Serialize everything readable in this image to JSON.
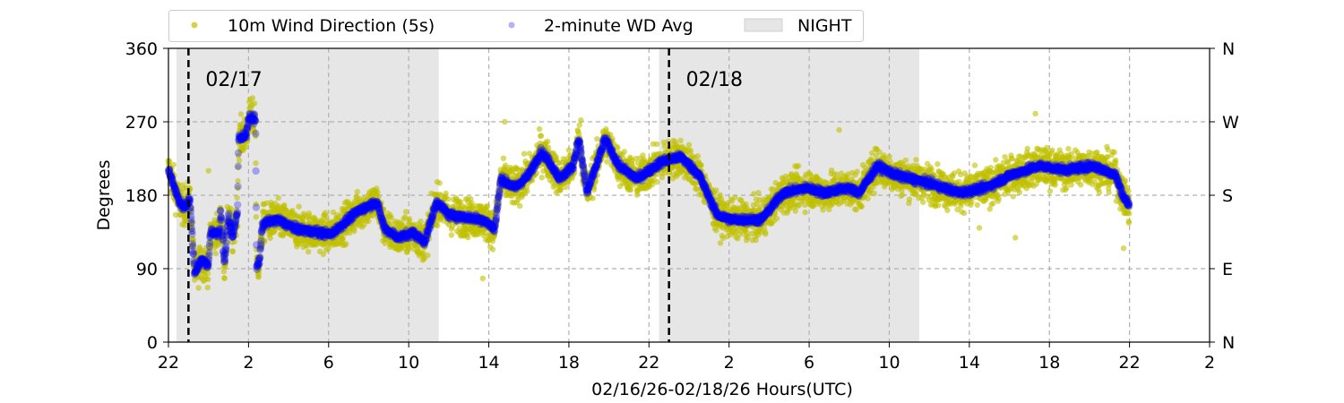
{
  "chart_data": {
    "type": "scatter",
    "title": "",
    "xlabel": "02/16/26-02/18/26  Hours(UTC)",
    "ylabel": "Degrees",
    "x_unit": "hours since 02/16 22:00 UTC",
    "xlim": [
      0,
      52
    ],
    "ylim": [
      0,
      360
    ],
    "x_ticks": [
      0,
      4,
      8,
      12,
      16,
      20,
      24,
      28,
      32,
      36,
      40,
      44,
      48,
      52
    ],
    "x_tick_labels": [
      "22",
      "2",
      "6",
      "10",
      "14",
      "18",
      "22",
      "2",
      "6",
      "10",
      "14",
      "18",
      "22",
      "2"
    ],
    "y_ticks": [
      0,
      90,
      180,
      270,
      360
    ],
    "y_tick_labels": [
      "0",
      "90",
      "180",
      "270",
      "360"
    ],
    "y2_tick_labels": [
      "N",
      "E",
      "S",
      "W",
      "N"
    ],
    "grid": true,
    "legend": {
      "placement": "top-center, above plot",
      "entries": [
        "10m Wind Direction (5s)",
        "2-minute WD Avg",
        "NIGHT"
      ]
    },
    "night_periods": [
      [
        0.4,
        13.5
      ],
      [
        24.5,
        37.5
      ]
    ],
    "day_markers": [
      {
        "hour": 1,
        "label": "02/17"
      },
      {
        "hour": 25,
        "label": "02/18"
      }
    ],
    "colors": {
      "wd5s": "#bfbf00",
      "avg": "#0000ff",
      "night": "#e6e6e6"
    },
    "series": [
      {
        "name": "2-minute WD Avg",
        "points": [
          [
            0,
            211
          ],
          [
            0.54,
            172
          ],
          [
            0.8,
            165
          ],
          [
            1.07,
            176
          ],
          [
            1.3,
            85
          ],
          [
            1.65,
            101
          ],
          [
            2.0,
            95
          ],
          [
            2.1,
            134
          ],
          [
            2.55,
            134
          ],
          [
            2.6,
            161
          ],
          [
            2.8,
            95
          ],
          [
            3.0,
            156
          ],
          [
            3.2,
            128
          ],
          [
            3.45,
            159
          ],
          [
            3.5,
            249
          ],
          [
            3.9,
            255
          ],
          [
            4.0,
            274
          ],
          [
            4.35,
            274
          ],
          [
            4.4,
            90
          ],
          [
            4.55,
            101
          ],
          [
            4.7,
            145
          ],
          [
            5.45,
            150
          ],
          [
            6.35,
            139
          ],
          [
            8.1,
            132
          ],
          [
            9.5,
            161
          ],
          [
            10.4,
            172
          ],
          [
            10.8,
            139
          ],
          [
            11.5,
            128
          ],
          [
            12.2,
            134
          ],
          [
            12.8,
            123
          ],
          [
            13.4,
            172
          ],
          [
            14.0,
            156
          ],
          [
            15.7,
            150
          ],
          [
            16.3,
            139
          ],
          [
            16.6,
            200
          ],
          [
            17.3,
            189
          ],
          [
            18.0,
            205
          ],
          [
            18.6,
            233
          ],
          [
            19.0,
            222
          ],
          [
            19.55,
            200
          ],
          [
            20.2,
            216
          ],
          [
            20.5,
            249
          ],
          [
            20.9,
            183
          ],
          [
            21.6,
            233
          ],
          [
            21.8,
            249
          ],
          [
            22.5,
            216
          ],
          [
            23.4,
            200
          ],
          [
            24.7,
            222
          ],
          [
            25.6,
            227
          ],
          [
            26.5,
            205
          ],
          [
            27.4,
            156
          ],
          [
            28.1,
            150
          ],
          [
            29.6,
            150
          ],
          [
            30.7,
            183
          ],
          [
            31.9,
            189
          ],
          [
            32.75,
            183
          ],
          [
            33.9,
            189
          ],
          [
            34.5,
            183
          ],
          [
            35.4,
            216
          ],
          [
            36.3,
            205
          ],
          [
            38.1,
            194
          ],
          [
            39.5,
            183
          ],
          [
            40.8,
            189
          ],
          [
            42.1,
            205
          ],
          [
            43.5,
            216
          ],
          [
            44.8,
            211
          ],
          [
            46.2,
            216
          ],
          [
            47.3,
            205
          ],
          [
            47.7,
            178
          ],
          [
            48.0,
            167
          ]
        ]
      },
      {
        "name": "10m Wind Direction (5s)",
        "spread_deg": 22,
        "outliers": [
          [
            2.0,
            210
          ],
          [
            15.7,
            78
          ],
          [
            16.8,
            270
          ],
          [
            20.6,
            272
          ],
          [
            43.3,
            280
          ],
          [
            47.7,
            115
          ],
          [
            40.5,
            140
          ],
          [
            42.3,
            128
          ],
          [
            33.5,
            260
          ]
        ]
      }
    ]
  }
}
